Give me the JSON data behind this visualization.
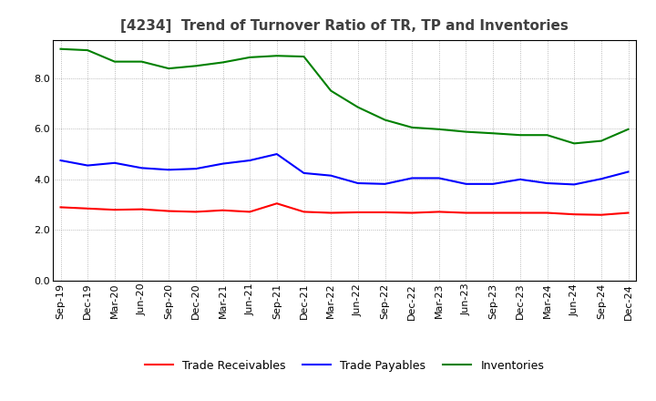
{
  "title": "[4234]  Trend of Turnover Ratio of TR, TP and Inventories",
  "ylim": [
    0,
    9.5
  ],
  "yticks": [
    0.0,
    2.0,
    4.0,
    6.0,
    8.0
  ],
  "x_labels": [
    "Sep-19",
    "Dec-19",
    "Mar-20",
    "Jun-20",
    "Sep-20",
    "Dec-20",
    "Mar-21",
    "Jun-21",
    "Sep-21",
    "Dec-21",
    "Mar-22",
    "Jun-22",
    "Sep-22",
    "Dec-22",
    "Mar-23",
    "Jun-23",
    "Sep-23",
    "Dec-23",
    "Mar-24",
    "Jun-24",
    "Sep-24",
    "Dec-24"
  ],
  "trade_receivables": [
    2.9,
    2.85,
    2.8,
    2.82,
    2.75,
    2.72,
    2.78,
    2.72,
    3.05,
    2.72,
    2.68,
    2.7,
    2.7,
    2.68,
    2.72,
    2.68,
    2.68,
    2.68,
    2.68,
    2.62,
    2.6,
    2.68
  ],
  "trade_payables": [
    4.75,
    4.55,
    4.65,
    4.45,
    4.38,
    4.42,
    4.62,
    4.75,
    5.0,
    4.25,
    4.15,
    3.85,
    3.82,
    4.05,
    4.05,
    3.82,
    3.82,
    4.0,
    3.85,
    3.8,
    4.02,
    4.3
  ],
  "inventories": [
    9.15,
    9.1,
    8.65,
    8.65,
    8.38,
    8.48,
    8.62,
    8.82,
    8.88,
    8.85,
    7.5,
    6.85,
    6.35,
    6.05,
    5.98,
    5.88,
    5.82,
    5.75,
    5.75,
    5.42,
    5.52,
    5.98
  ],
  "tr_color": "#ff0000",
  "tp_color": "#0000ff",
  "inv_color": "#008000",
  "tr_label": "Trade Receivables",
  "tp_label": "Trade Payables",
  "inv_label": "Inventories",
  "line_width": 1.5,
  "background_color": "#ffffff",
  "title_fontsize": 11,
  "legend_fontsize": 9,
  "tick_fontsize": 8
}
